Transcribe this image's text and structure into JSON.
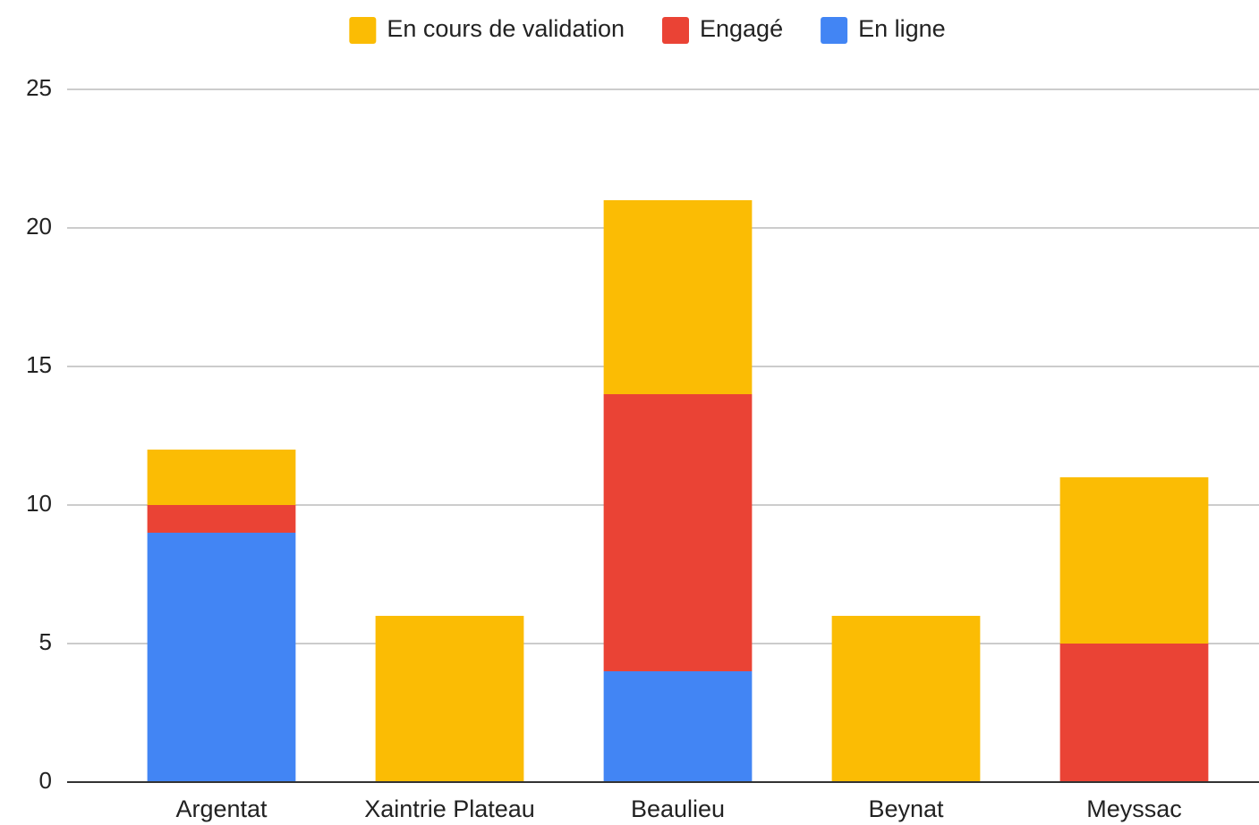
{
  "chart_data": {
    "type": "stacked_bar",
    "categories": [
      "Argentat",
      "Xaintrie Plateau",
      "Beaulieu",
      "Beynat",
      "Meyssac"
    ],
    "series": [
      {
        "name": "En cours de validation",
        "color": "#fbbc04",
        "values": [
          2,
          6,
          7,
          6,
          6
        ]
      },
      {
        "name": "Engagé",
        "color": "#ea4335",
        "values": [
          1,
          0,
          10,
          0,
          5
        ]
      },
      {
        "name": "En ligne",
        "color": "#4285f4",
        "values": [
          9,
          0,
          4,
          0,
          0
        ]
      }
    ],
    "ylim": [
      0,
      25
    ],
    "yticks": [
      0,
      5,
      10,
      15,
      20,
      25
    ],
    "grid": true,
    "legend": "top"
  }
}
